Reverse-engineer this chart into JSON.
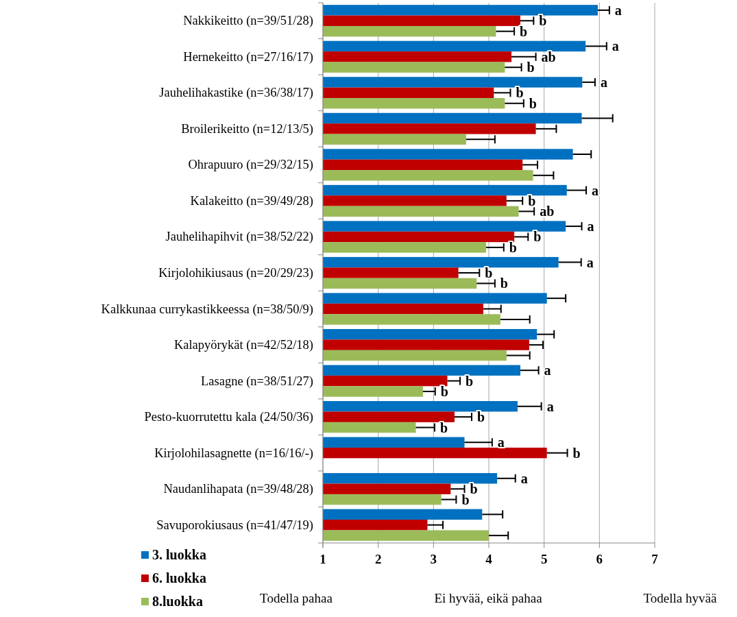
{
  "chart_data": {
    "type": "bar",
    "orientation": "horizontal",
    "categories": [
      "Nakkikeitto (n=39/51/28)",
      "Hernekeitto (n=27/16/17)",
      "Jauhelihakastike (n=36/38/17)",
      "Broilerikeitto (n=12/13/5)",
      "Ohrapuuro (n=29/32/15)",
      "Kalakeitto (n=39/49/28)",
      "Jauhelihapihvit (n=38/52/22)",
      "Kirjolohikiusaus (n=20/29/23)",
      "Kalkkunaa currykastikkeessa (n=38/50/9)",
      "Kalapyörykät (n=42/52/18)",
      "Lasagne (n=38/51/27)",
      "Pesto-kuorrutettu kala (24/50/36)",
      "Kirjolohilasagnette (n=16/16/-)",
      "Naudanlihapata (n=39/48/28)",
      "Savuporokiusaus (n=41/47/19)"
    ],
    "series": [
      {
        "name": "3. luokka",
        "color": "#0070c0",
        "values": [
          5.97,
          5.75,
          5.69,
          5.68,
          5.52,
          5.41,
          5.39,
          5.26,
          5.05,
          4.87,
          4.57,
          4.52,
          3.56,
          4.15,
          3.88
        ],
        "errors": [
          [
            5.97,
            6.18
          ],
          [
            5.75,
            6.13
          ],
          [
            5.69,
            5.92
          ],
          [
            5.68,
            6.24
          ],
          [
            5.52,
            5.85
          ],
          [
            5.41,
            5.76
          ],
          [
            5.39,
            5.68
          ],
          [
            5.26,
            5.67
          ],
          [
            5.05,
            5.39
          ],
          [
            4.87,
            5.18
          ],
          [
            4.57,
            4.9
          ],
          [
            4.52,
            4.95
          ],
          [
            3.56,
            4.06
          ],
          [
            4.15,
            4.48
          ],
          [
            3.88,
            4.25
          ]
        ],
        "value_labels": [
          "a",
          "a",
          "a",
          null,
          null,
          "a",
          "a",
          "a",
          null,
          null,
          "a",
          "a",
          "a",
          "a",
          null
        ]
      },
      {
        "name": "6. luokka",
        "color": "#c00000",
        "values": [
          4.57,
          4.41,
          4.09,
          4.85,
          4.61,
          4.32,
          4.46,
          3.45,
          3.9,
          4.73,
          3.25,
          3.38,
          5.05,
          3.31,
          2.89
        ],
        "errors": [
          [
            4.57,
            4.81
          ],
          [
            4.41,
            4.85
          ],
          [
            4.09,
            4.39
          ],
          [
            4.85,
            5.22
          ],
          [
            4.61,
            4.88
          ],
          [
            4.32,
            4.61
          ],
          [
            4.46,
            4.71
          ],
          [
            3.45,
            3.83
          ],
          [
            3.9,
            4.22
          ],
          [
            4.73,
            4.98
          ],
          [
            3.25,
            3.48
          ],
          [
            3.38,
            3.69
          ],
          [
            5.05,
            5.42
          ],
          [
            3.31,
            3.56
          ],
          [
            2.89,
            3.17
          ]
        ],
        "value_labels": [
          "b",
          "ab",
          "b",
          null,
          null,
          "b",
          "b",
          "b",
          null,
          null,
          "b",
          "b",
          "b",
          "b",
          null
        ]
      },
      {
        "name": "8.luokka",
        "color": "#9bbb59",
        "values": [
          4.13,
          4.29,
          4.29,
          3.59,
          4.8,
          4.54,
          3.95,
          3.78,
          4.21,
          4.32,
          2.81,
          2.68,
          null,
          3.14,
          4.0
        ],
        "errors": [
          [
            4.13,
            4.46
          ],
          [
            4.29,
            4.59
          ],
          [
            4.29,
            4.63
          ],
          [
            3.59,
            4.11
          ],
          [
            4.8,
            5.17
          ],
          [
            4.54,
            4.82
          ],
          [
            3.95,
            4.27
          ],
          [
            3.78,
            4.11
          ],
          [
            4.21,
            4.74
          ],
          [
            4.32,
            4.74
          ],
          [
            2.81,
            3.03
          ],
          [
            2.68,
            3.02
          ],
          null,
          [
            3.14,
            3.41
          ],
          [
            4.0,
            4.35
          ]
        ],
        "value_labels": [
          "b",
          "b",
          "b",
          null,
          null,
          "ab",
          "b",
          "b",
          null,
          null,
          "b",
          "b",
          null,
          "b",
          null
        ]
      }
    ],
    "xlim": [
      1,
      7
    ],
    "xticks": [
      1,
      2,
      3,
      4,
      5,
      6,
      7
    ],
    "grid": "x",
    "legend": "bottom left",
    "annotations": [
      "Todella pahaa",
      "Ei hyvää, eikä pahaa",
      "Todella hyvää"
    ]
  }
}
